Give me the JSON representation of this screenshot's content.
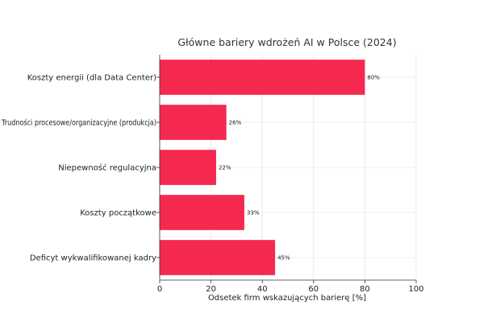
{
  "chart_data": {
    "type": "bar",
    "orientation": "horizontal",
    "title": "Główne bariery wdrożeń AI w Polsce (2024)",
    "xlabel": "Odsetek firm wskazujących barierę [%]",
    "ylabel": "",
    "xlim": [
      0,
      100
    ],
    "xticks": [
      0,
      20,
      40,
      60,
      80,
      100
    ],
    "grid": true,
    "bar_color": "#f5294f",
    "categories": [
      "Koszty energii (dla Data Center)",
      "Trudności procesowe/organizacyjne (produkcja)",
      "Niepewność regulacyjna",
      "Koszty początkowe",
      "Deficyt wykwalifikowanej kadry"
    ],
    "values": [
      80,
      26,
      22,
      33,
      45
    ],
    "value_labels": [
      "80%",
      "26%",
      "22%",
      "33%",
      "45%"
    ]
  }
}
